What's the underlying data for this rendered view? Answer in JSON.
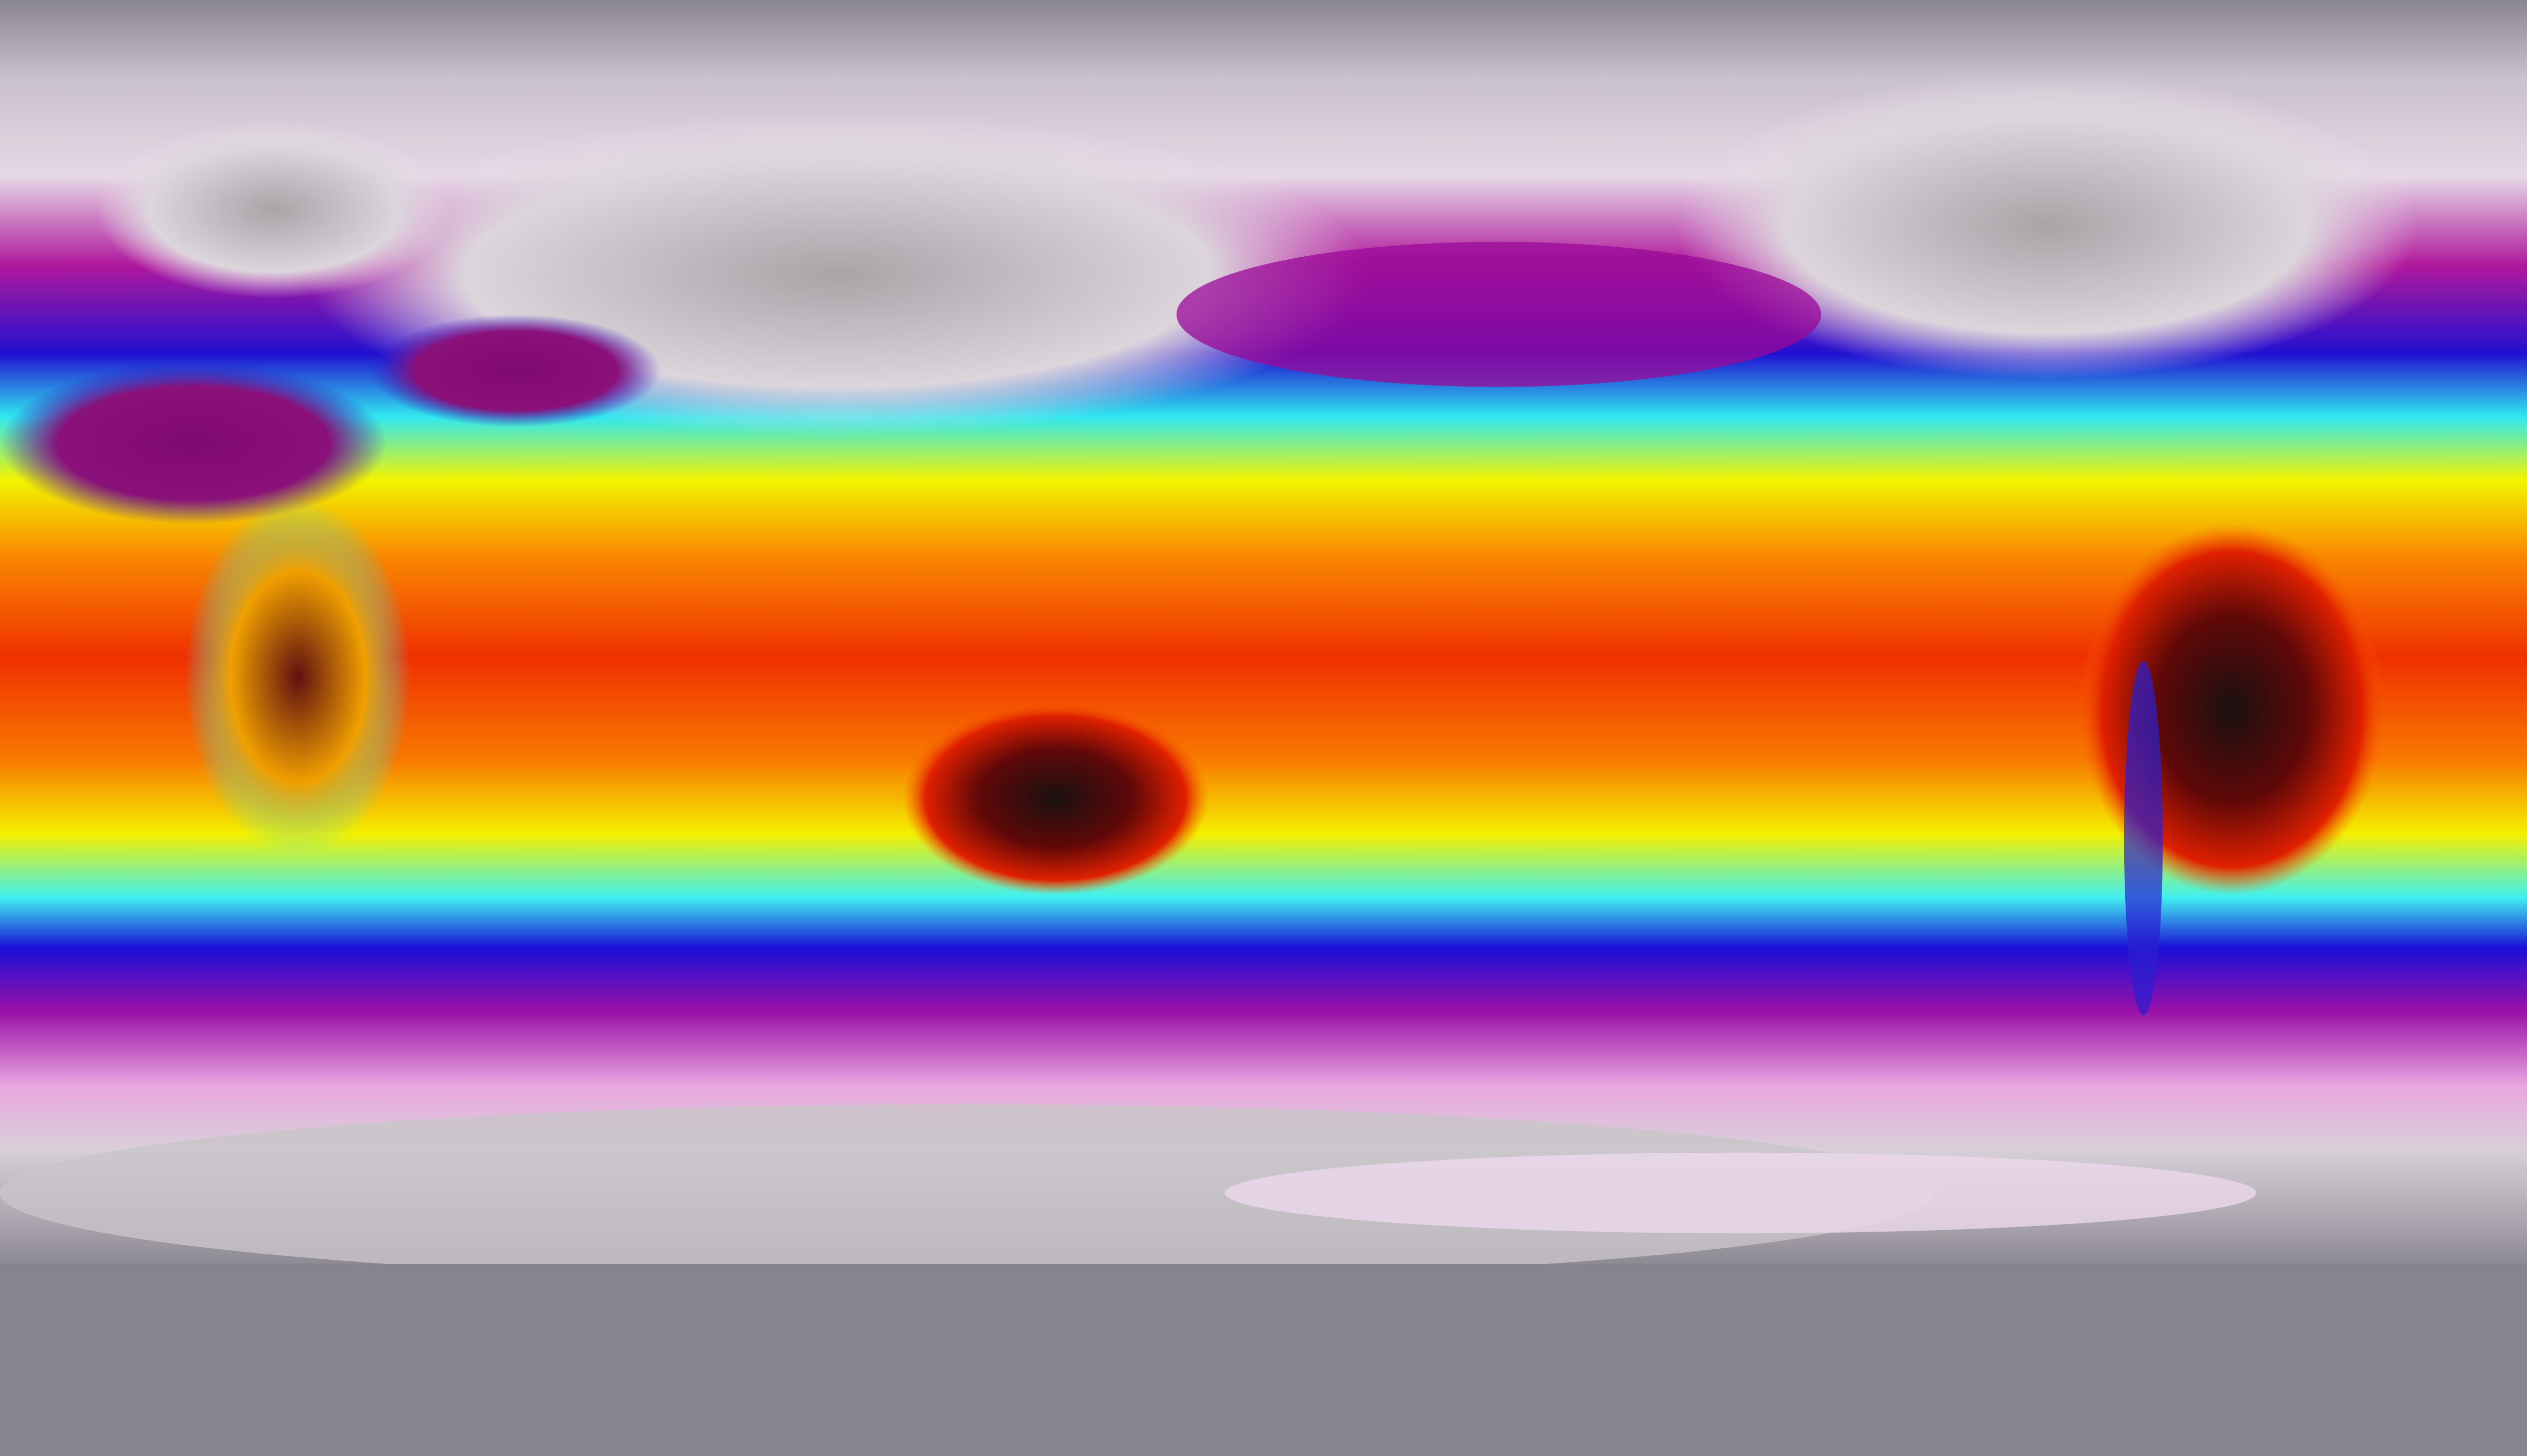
{
  "map": {
    "type": "global temperature field, equirectangular projection",
    "colormap": {
      "coldest": "#8a8592",
      "very_cold": "#e8dde8",
      "cold": "#b0109a",
      "cool": "#1a10d8",
      "mild": "#30f0f0",
      "warm": "#f8f800",
      "hot": "#f83000",
      "hottest": "#200808"
    }
  }
}
